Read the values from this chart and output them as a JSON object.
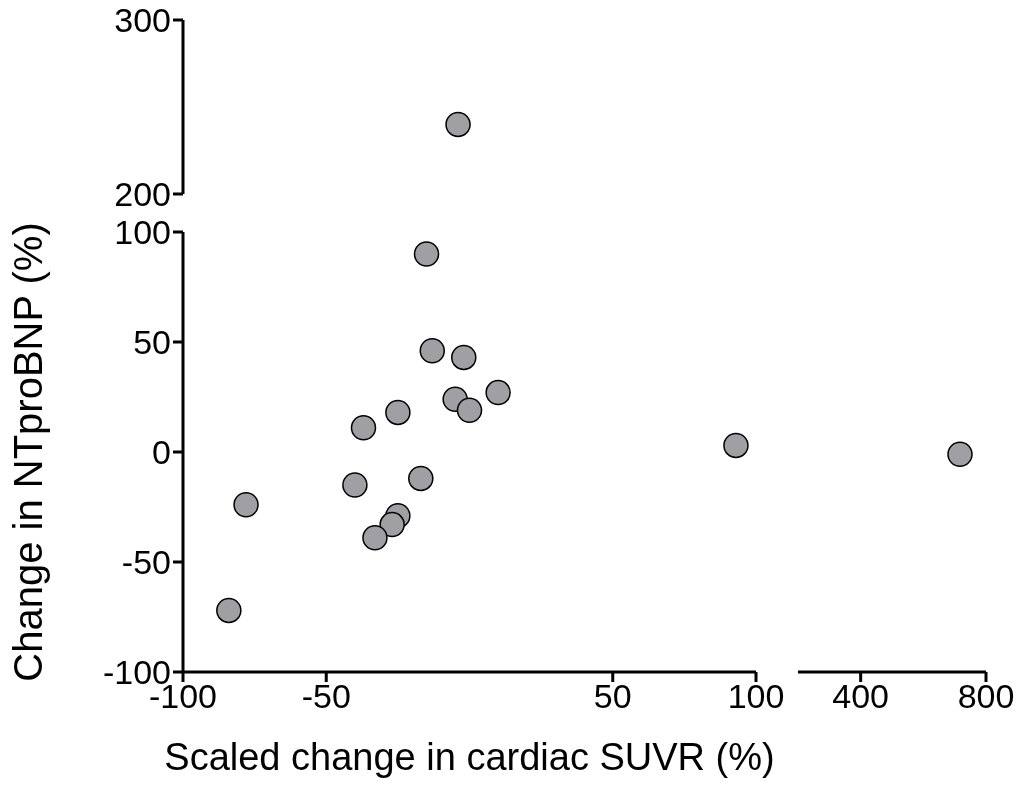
{
  "chart_data": [
    {
      "type": "scatter",
      "xlim": [
        -100,
        100
      ],
      "ylim": [
        200,
        300
      ],
      "yticks": [
        200,
        300
      ],
      "tick_labels": "y",
      "marker": "circle",
      "series": [
        {
          "color": "#a0a0a4",
          "x": [
            -4
          ],
          "values": [
            240
          ]
        }
      ]
    },
    {
      "type": "scatter",
      "xlim": [
        -100,
        100
      ],
      "ylim": [
        -100,
        100
      ],
      "xticks": [
        -100,
        -50,
        50,
        100
      ],
      "yticks": [
        -100,
        -50,
        0,
        50,
        100
      ],
      "marker": "circle",
      "xlabel": "Scaled change in cardiac SUVR (%)",
      "ylabel": "Change in NTproBNP (%)",
      "series": [
        {
          "color": "#a0a0a4",
          "x": [
            -15,
            -13,
            -2,
            10,
            -5,
            0,
            -25,
            -37,
            93,
            -17,
            -40,
            -78,
            -25,
            -27,
            -33,
            -84
          ],
          "values": [
            90,
            46,
            43,
            27,
            24,
            19,
            18,
            11,
            3,
            -12,
            -15,
            -24,
            -29,
            -33,
            -39,
            -72
          ]
        }
      ]
    },
    {
      "type": "scatter",
      "xlim": [
        200,
        800
      ],
      "ylim": [
        -100,
        100
      ],
      "xticks": [
        400,
        800
      ],
      "tick_labels": "x",
      "marker": "circle",
      "series": [
        {
          "color": "#a0a0a4",
          "x": [
            717
          ],
          "values": [
            -1
          ]
        }
      ]
    }
  ]
}
